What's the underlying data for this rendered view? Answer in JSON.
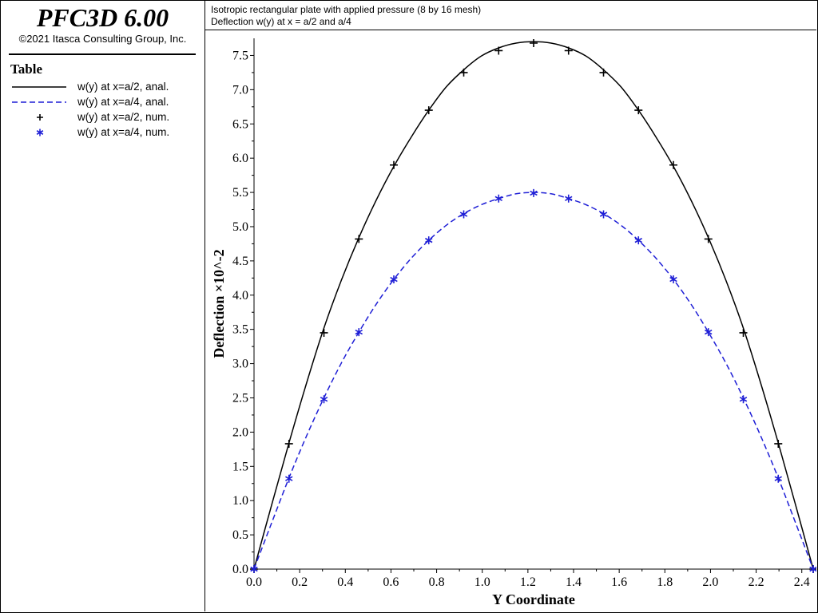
{
  "app": {
    "title": "PFC3D 6.00",
    "copyright": "©2021 Itasca Consulting Group, Inc."
  },
  "legend": {
    "heading": "Table",
    "items": [
      {
        "label": "w(y) at x=a/2, anal.",
        "symbol": "solid-line",
        "color": "#000000"
      },
      {
        "label": "w(y) at x=a/4, anal.",
        "symbol": "dashed-line",
        "color": "#1f1fd6"
      },
      {
        "label": "w(y) at x=a/2, num.",
        "symbol": "plus-marker",
        "color": "#000000"
      },
      {
        "label": "w(y) at x=a/4, num.",
        "symbol": "asterisk-marker",
        "color": "#1f1fd6"
      }
    ]
  },
  "plot_header": {
    "line1": "Isotropic rectangular plate with applied pressure (8 by 16 mesh)",
    "line2": "Deflection w(y) at x = a/2 and a/4"
  },
  "chart_data": {
    "type": "line",
    "title": "Isotropic rectangular plate with applied pressure (8 by 16 mesh)",
    "subtitle": "Deflection w(y) at x = a/2 and a/4",
    "xlabel": "Y Coordinate",
    "ylabel": "Deflection ×10^-2",
    "xlim": [
      0.0,
      2.45
    ],
    "ylim": [
      0.0,
      7.75
    ],
    "xticks": [
      "0.0",
      "0.2",
      "0.4",
      "0.6",
      "0.8",
      "1.0",
      "1.2",
      "1.4",
      "1.6",
      "1.8",
      "2.0",
      "2.2",
      "2.4"
    ],
    "yticks": [
      "0.0",
      "0.5",
      "1.0",
      "1.5",
      "2.0",
      "2.5",
      "3.0",
      "3.5",
      "4.0",
      "4.5",
      "5.0",
      "5.5",
      "6.0",
      "6.5",
      "7.0",
      "7.5"
    ],
    "grid": false,
    "series": [
      {
        "name": "w(y) at x=a/2, anal.",
        "style": "solid",
        "color": "#000000",
        "x": [
          0.0,
          0.0766,
          0.1531,
          0.2297,
          0.3063,
          0.3828,
          0.4594,
          0.5359,
          0.6125,
          0.6891,
          0.7656,
          0.8422,
          0.9188,
          0.9953,
          1.0719,
          1.1484,
          1.225,
          1.3016,
          1.3781,
          1.4547,
          1.5313,
          1.6078,
          1.6844,
          1.7609,
          1.8375,
          1.9141,
          1.9906,
          2.0672,
          2.1438,
          2.2203,
          2.2969,
          2.3734,
          2.45
        ],
        "y": [
          0.0,
          0.93,
          1.84,
          2.71,
          3.52,
          4.22,
          4.84,
          5.39,
          5.88,
          6.31,
          6.7,
          7.04,
          7.29,
          7.49,
          7.61,
          7.68,
          7.7,
          7.68,
          7.61,
          7.49,
          7.29,
          7.04,
          6.7,
          6.31,
          5.88,
          5.39,
          4.84,
          4.22,
          3.52,
          2.71,
          1.84,
          0.93,
          0.0
        ]
      },
      {
        "name": "w(y) at x=a/4, anal.",
        "style": "dashed",
        "color": "#1f1fd6",
        "x": [
          0.0,
          0.0766,
          0.1531,
          0.2297,
          0.3063,
          0.3828,
          0.4594,
          0.5359,
          0.6125,
          0.6891,
          0.7656,
          0.8422,
          0.9188,
          0.9953,
          1.0719,
          1.1484,
          1.225,
          1.3016,
          1.3781,
          1.4547,
          1.5313,
          1.6078,
          1.6844,
          1.7609,
          1.8375,
          1.9141,
          1.9906,
          2.0672,
          2.1438,
          2.2203,
          2.2969,
          2.3734,
          2.45
        ],
        "y": [
          0.0,
          0.67,
          1.33,
          1.94,
          2.5,
          3.01,
          3.46,
          3.87,
          4.23,
          4.54,
          4.8,
          5.02,
          5.19,
          5.32,
          5.41,
          5.48,
          5.5,
          5.48,
          5.41,
          5.32,
          5.19,
          5.02,
          4.8,
          4.54,
          4.23,
          3.87,
          3.46,
          3.01,
          2.5,
          1.94,
          1.33,
          0.67,
          0.0
        ]
      },
      {
        "name": "w(y) at x=a/2, num.",
        "style": "marker-plus",
        "color": "#000000",
        "x": [
          0.0,
          0.1531,
          0.3063,
          0.4594,
          0.6125,
          0.7656,
          0.9188,
          1.0719,
          1.225,
          1.3781,
          1.5313,
          1.6844,
          1.8375,
          1.9906,
          2.1438,
          2.2969,
          2.45
        ],
        "y": [
          0.0,
          1.83,
          3.45,
          4.82,
          5.9,
          6.7,
          7.25,
          7.57,
          7.68,
          7.57,
          7.25,
          6.7,
          5.9,
          4.82,
          3.45,
          1.83,
          0.0
        ]
      },
      {
        "name": "w(y) at x=a/4, num.",
        "style": "marker-asterisk",
        "color": "#1f1fd6",
        "x": [
          0.0,
          0.1531,
          0.3063,
          0.4594,
          0.6125,
          0.7656,
          0.9188,
          1.0719,
          1.225,
          1.3781,
          1.5313,
          1.6844,
          1.8375,
          1.9906,
          2.1438,
          2.2969,
          2.45
        ],
        "y": [
          0.0,
          1.32,
          2.48,
          3.46,
          4.23,
          4.8,
          5.18,
          5.41,
          5.49,
          5.41,
          5.18,
          4.8,
          4.23,
          3.46,
          2.48,
          1.32,
          0.0
        ]
      }
    ]
  }
}
